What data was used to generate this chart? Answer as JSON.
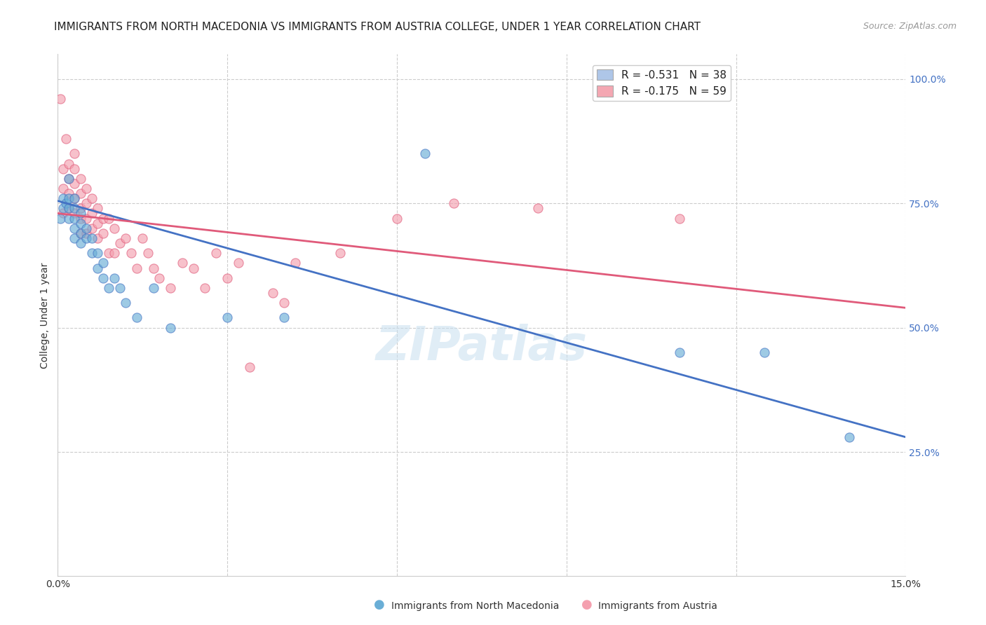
{
  "title": "IMMIGRANTS FROM NORTH MACEDONIA VS IMMIGRANTS FROM AUSTRIA COLLEGE, UNDER 1 YEAR CORRELATION CHART",
  "source": "Source: ZipAtlas.com",
  "ylabel": "College, Under 1 year",
  "xlim": [
    0.0,
    0.15
  ],
  "ylim": [
    0.0,
    1.05
  ],
  "xticks": [
    0.0,
    0.03,
    0.06,
    0.09,
    0.12,
    0.15
  ],
  "yticks_right": [
    0.25,
    0.5,
    0.75,
    1.0
  ],
  "yticklabels_right": [
    "25.0%",
    "50.0%",
    "75.0%",
    "100.0%"
  ],
  "legend1_label": "R = -0.531   N = 38",
  "legend2_label": "R = -0.175   N = 59",
  "legend_color1": "#aec6e8",
  "legend_color2": "#f4a7b2",
  "scatter_blue_x": [
    0.0005,
    0.001,
    0.001,
    0.0015,
    0.002,
    0.002,
    0.002,
    0.002,
    0.003,
    0.003,
    0.003,
    0.003,
    0.003,
    0.004,
    0.004,
    0.004,
    0.004,
    0.005,
    0.005,
    0.006,
    0.006,
    0.007,
    0.007,
    0.008,
    0.008,
    0.009,
    0.01,
    0.011,
    0.012,
    0.014,
    0.017,
    0.02,
    0.03,
    0.04,
    0.065,
    0.11,
    0.125,
    0.14
  ],
  "scatter_blue_y": [
    0.72,
    0.76,
    0.74,
    0.75,
    0.8,
    0.76,
    0.74,
    0.72,
    0.76,
    0.74,
    0.72,
    0.7,
    0.68,
    0.73,
    0.71,
    0.69,
    0.67,
    0.7,
    0.68,
    0.68,
    0.65,
    0.65,
    0.62,
    0.63,
    0.6,
    0.58,
    0.6,
    0.58,
    0.55,
    0.52,
    0.58,
    0.5,
    0.52,
    0.52,
    0.85,
    0.45,
    0.45,
    0.28
  ],
  "scatter_pink_x": [
    0.0005,
    0.001,
    0.001,
    0.001,
    0.0015,
    0.002,
    0.002,
    0.002,
    0.002,
    0.003,
    0.003,
    0.003,
    0.003,
    0.003,
    0.004,
    0.004,
    0.004,
    0.004,
    0.004,
    0.005,
    0.005,
    0.005,
    0.005,
    0.006,
    0.006,
    0.006,
    0.007,
    0.007,
    0.007,
    0.008,
    0.008,
    0.009,
    0.009,
    0.01,
    0.01,
    0.011,
    0.012,
    0.013,
    0.014,
    0.015,
    0.016,
    0.017,
    0.018,
    0.02,
    0.022,
    0.024,
    0.026,
    0.028,
    0.03,
    0.032,
    0.034,
    0.038,
    0.04,
    0.042,
    0.05,
    0.06,
    0.07,
    0.085,
    0.11
  ],
  "scatter_pink_y": [
    0.96,
    0.82,
    0.78,
    0.73,
    0.88,
    0.83,
    0.8,
    0.77,
    0.74,
    0.85,
    0.82,
    0.79,
    0.76,
    0.73,
    0.8,
    0.77,
    0.74,
    0.72,
    0.69,
    0.78,
    0.75,
    0.72,
    0.69,
    0.76,
    0.73,
    0.7,
    0.74,
    0.71,
    0.68,
    0.72,
    0.69,
    0.72,
    0.65,
    0.7,
    0.65,
    0.67,
    0.68,
    0.65,
    0.62,
    0.68,
    0.65,
    0.62,
    0.6,
    0.58,
    0.63,
    0.62,
    0.58,
    0.65,
    0.6,
    0.63,
    0.42,
    0.57,
    0.55,
    0.63,
    0.65,
    0.72,
    0.75,
    0.74,
    0.72
  ],
  "blue_line_x": [
    0.0,
    0.15
  ],
  "blue_line_y": [
    0.755,
    0.28
  ],
  "pink_line_x": [
    0.0,
    0.15
  ],
  "pink_line_y": [
    0.73,
    0.54
  ],
  "blue_color": "#6aaed6",
  "pink_color": "#f4a0af",
  "blue_line_color": "#4472c4",
  "pink_line_color": "#e05a7a",
  "grid_color": "#cccccc",
  "watermark": "ZIPatlas",
  "legend_bottom_labels": [
    "Immigrants from North Macedonia",
    "Immigrants from Austria"
  ],
  "title_fontsize": 11,
  "axis_fontsize": 10,
  "source_fontsize": 9
}
